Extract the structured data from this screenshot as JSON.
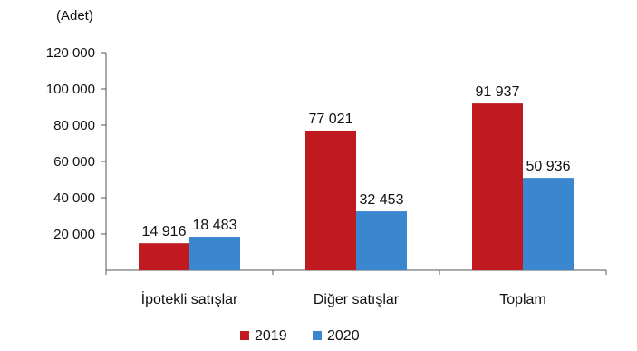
{
  "chart_data": {
    "type": "bar",
    "unit_label": "(Adet)",
    "categories": [
      "İpotekli satışlar",
      "Diğer satışlar",
      "Toplam"
    ],
    "series": [
      {
        "name": "2019",
        "color": "#c0191f",
        "values": [
          14916,
          77021,
          91937
        ],
        "labels": [
          "14 916",
          "77 021",
          "91 937"
        ]
      },
      {
        "name": "2020",
        "color": "#3a87cf",
        "values": [
          18483,
          32453,
          50936
        ],
        "labels": [
          "18 483",
          "32 453",
          "50 936"
        ]
      }
    ],
    "ylim": [
      0,
      120000
    ],
    "yticks": [
      20000,
      40000,
      60000,
      80000,
      100000,
      120000
    ],
    "ytick_labels": [
      "20 000",
      "40 000",
      "60 000",
      "80 000",
      "100 000",
      "120 000"
    ],
    "grid": false,
    "legend_position": "bottom-center"
  }
}
